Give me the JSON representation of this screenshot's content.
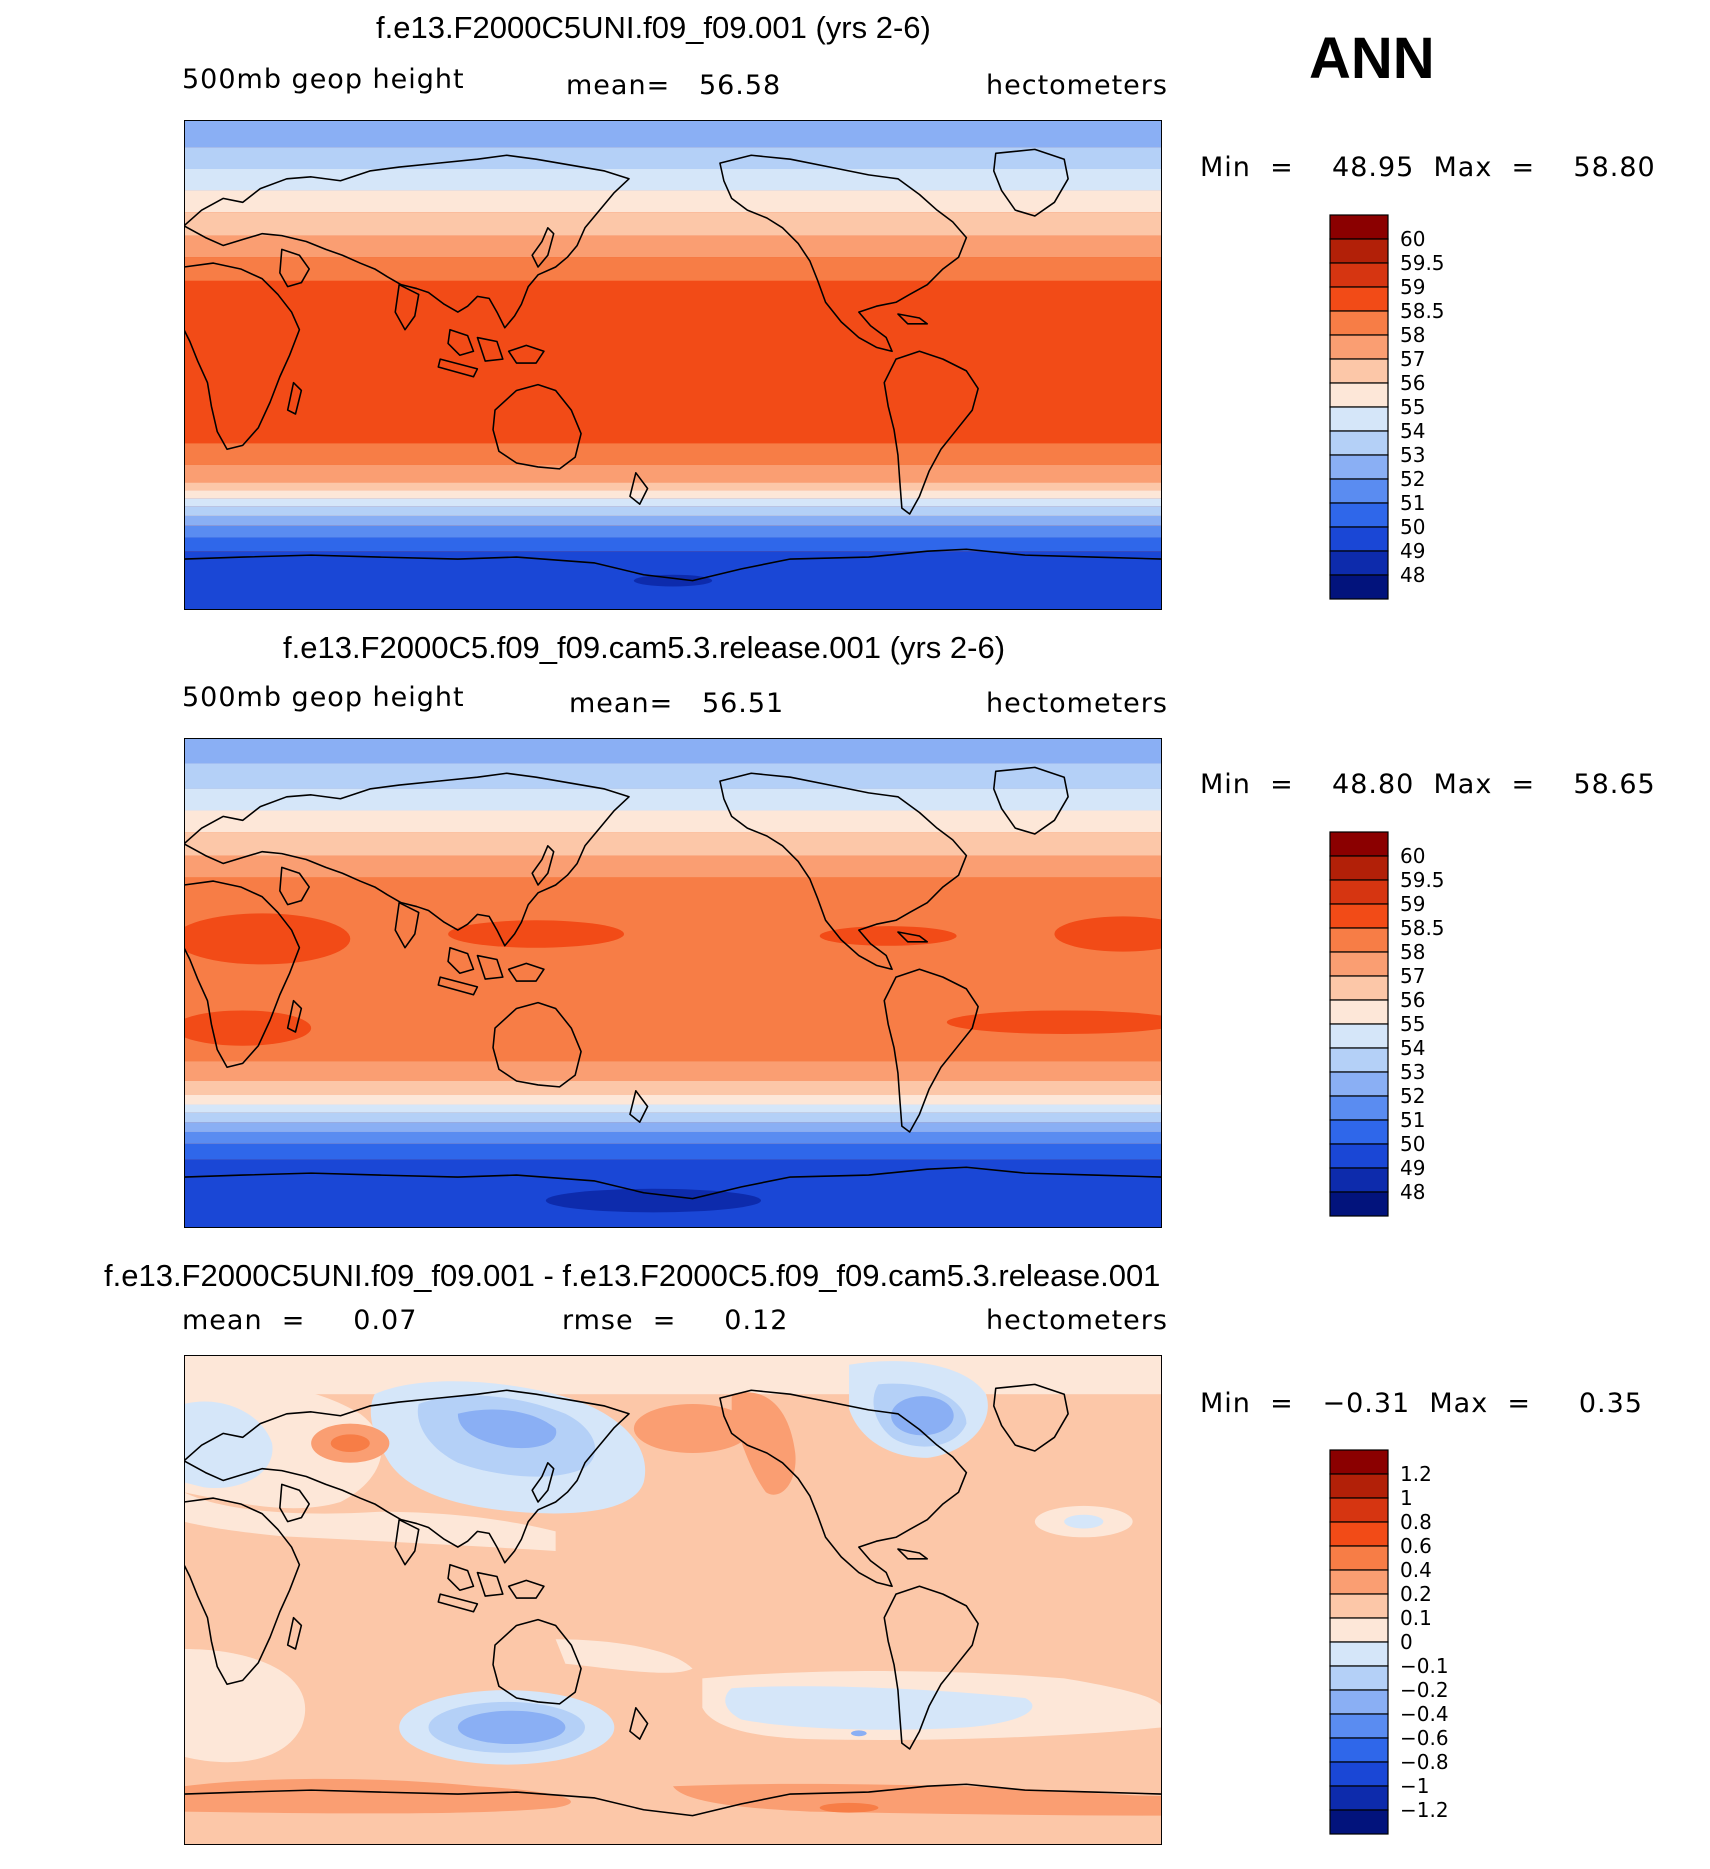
{
  "season": "ANN",
  "panels": [
    {
      "title": "f.e13.F2000C5UNI.f09_f09.001 (yrs 2-6)",
      "left_label": "500mb geop height",
      "center_label": "mean=   56.58",
      "right_label": "hectometers",
      "minmax": "Min  =    48.95  Max  =    58.80",
      "colorbar": {
        "levels": [
          "60",
          "59.5",
          "59",
          "58.5",
          "58",
          "57",
          "56",
          "55",
          "54",
          "53",
          "52",
          "51",
          "50",
          "49",
          "48"
        ],
        "colors": [
          "#8b0000",
          "#b22008",
          "#d63511",
          "#f24b17",
          "#f77d46",
          "#fa9e72",
          "#fcc7a8",
          "#fde7d8",
          "#d5e6f9",
          "#b4d0f7",
          "#8aaff4",
          "#5a8cf1",
          "#2f67ea",
          "#1a47d6",
          "#0d2bac",
          "#02137c"
        ]
      }
    },
    {
      "title": "f.e13.F2000C5.f09_f09.cam5.3.release.001 (yrs 2-6)",
      "left_label": "500mb geop height",
      "center_label": "mean=   56.51",
      "right_label": "hectometers",
      "minmax": "Min  =    48.80  Max  =    58.65",
      "colorbar": {
        "levels": [
          "60",
          "59.5",
          "59",
          "58.5",
          "58",
          "57",
          "56",
          "55",
          "54",
          "53",
          "52",
          "51",
          "50",
          "49",
          "48"
        ],
        "colors": [
          "#8b0000",
          "#b22008",
          "#d63511",
          "#f24b17",
          "#f77d46",
          "#fa9e72",
          "#fcc7a8",
          "#fde7d8",
          "#d5e6f9",
          "#b4d0f7",
          "#8aaff4",
          "#5a8cf1",
          "#2f67ea",
          "#1a47d6",
          "#0d2bac",
          "#02137c"
        ]
      }
    },
    {
      "title": "f.e13.F2000C5UNI.f09_f09.001 - f.e13.F2000C5.f09_f09.cam5.3.release.001",
      "left_label": "mean  =     0.07",
      "center_label": "rmse  =     0.12",
      "right_label": "hectometers",
      "minmax": "Min  =   −0.31  Max  =     0.35",
      "colorbar": {
        "levels": [
          "1.2",
          "1",
          "0.8",
          "0.6",
          "0.4",
          "0.2",
          "0.1",
          "0",
          "−0.1",
          "−0.2",
          "−0.4",
          "−0.6",
          "−0.8",
          "−1",
          "−1.2"
        ],
        "colors": [
          "#8b0000",
          "#b22008",
          "#d63511",
          "#f24b17",
          "#f77d46",
          "#fa9e72",
          "#fcc7a8",
          "#fde7d8",
          "#d5e6f9",
          "#b4d0f7",
          "#8aaff4",
          "#5a8cf1",
          "#2f67ea",
          "#1a47d6",
          "#0d2bac",
          "#02137c"
        ]
      }
    }
  ]
}
